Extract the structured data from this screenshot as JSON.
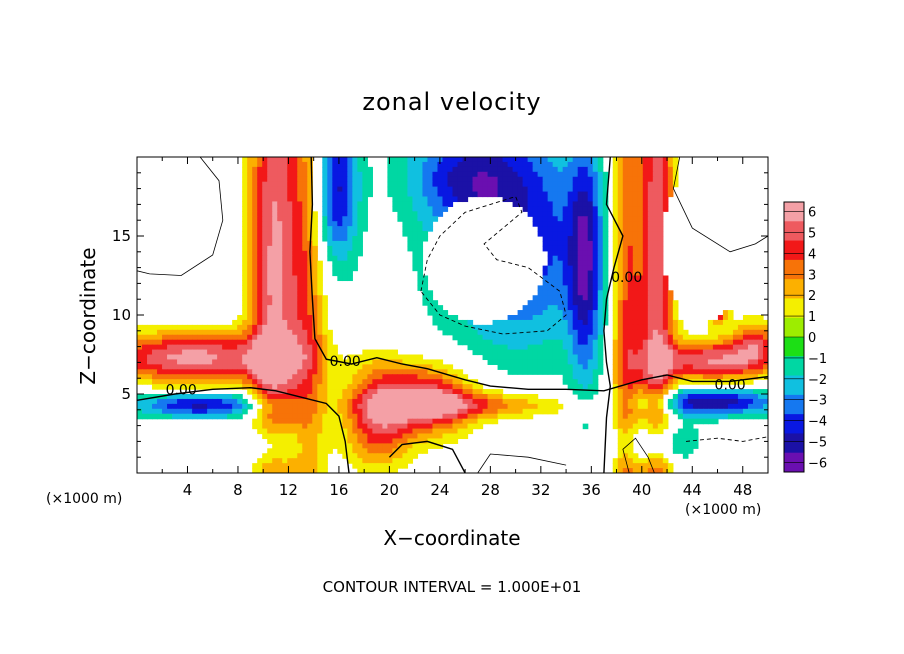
{
  "chart_data": {
    "type": "heatmap",
    "title": "zonal velocity",
    "xlabel": "X−coordinate",
    "ylabel": "Z−coordinate",
    "x_unit_label_left": "(×1000 m)",
    "x_unit_label_right": "(×1000 m)",
    "footnote": "CONTOUR INTERVAL = 1.000E+01",
    "xlim": [
      0,
      50
    ],
    "ylim": [
      0,
      20
    ],
    "x_ticks": [
      4,
      8,
      12,
      16,
      20,
      24,
      28,
      32,
      36,
      40,
      44,
      48
    ],
    "y_ticks": [
      5,
      10,
      15
    ],
    "colorbar": {
      "ticks": [
        "6",
        "5",
        "4",
        "3",
        "2",
        "1",
        "0",
        "−1",
        "−2",
        "−3",
        "−4",
        "−5",
        "−6"
      ],
      "range": [
        -6,
        6
      ],
      "colors": [
        "#f4a0a6",
        "#ee5a5f",
        "#f21818",
        "#f77308",
        "#fcb000",
        "#f4ef00",
        "#9ded00",
        "#1cdf15",
        "#00d7a3",
        "#10c0e0",
        "#1578f0",
        "#0918e2",
        "#1b11a6",
        "#6a0fb0"
      ]
    },
    "contour_labels": [
      {
        "x": 3.5,
        "y": 5.3,
        "text": "0.00"
      },
      {
        "x": 16.5,
        "y": 7.1,
        "text": "0.00"
      },
      {
        "x": 38.8,
        "y": 12.4,
        "text": "0.00"
      },
      {
        "x": 47.0,
        "y": 5.6,
        "text": "0.00"
      }
    ],
    "features": {
      "positive_zero_band_x_km": [
        10,
        13
      ],
      "negative_zero_band_x_km": [
        36,
        38
      ],
      "upper_negative_jet_center": [
        29,
        14
      ],
      "lower_jet_level_km": 4.5,
      "positive_core_center": [
        23,
        4
      ]
    }
  }
}
